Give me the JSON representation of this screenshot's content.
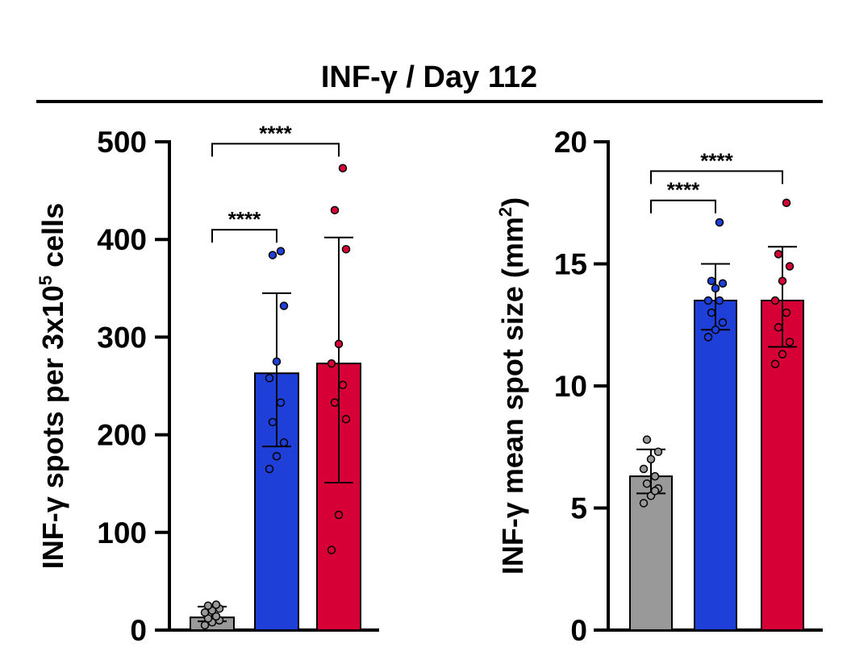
{
  "figure_title": "INF-γ / Day 112",
  "chart_data": [
    {
      "type": "bar",
      "ylabel_main": "INF-γ spots per 3x10",
      "ylabel_sup": "5",
      "ylabel_tail": " cells",
      "ylim": [
        0,
        500
      ],
      "yticks": [
        0,
        100,
        200,
        300,
        400,
        500
      ],
      "ytick_labels": [
        "0",
        "100",
        "200",
        "300",
        "400",
        "500"
      ],
      "groups": [
        {
          "color": "#999999",
          "mean": 13,
          "err_low": 9,
          "err_high": 24,
          "points": [
            5,
            8,
            10,
            12,
            14,
            18,
            20,
            22,
            25,
            26
          ]
        },
        {
          "color": "#1f3fd9",
          "mean": 263,
          "err_low": 188,
          "err_high": 345,
          "points": [
            165,
            178,
            192,
            213,
            233,
            258,
            275,
            332,
            384,
            388
          ]
        },
        {
          "color": "#d60036",
          "mean": 273,
          "err_low": 151,
          "err_high": 402,
          "points": [
            82,
            118,
            216,
            233,
            251,
            273,
            293,
            390,
            430,
            473
          ]
        }
      ],
      "significance": [
        {
          "from": 0,
          "to": 1,
          "label": "****",
          "level": 410
        },
        {
          "from": 0,
          "to": 2,
          "label": "****",
          "level": 498
        }
      ]
    },
    {
      "type": "bar",
      "ylabel_main": "INF-γ mean spot size (mm",
      "ylabel_sup": "2",
      "ylabel_tail": ")",
      "ylim": [
        0,
        20
      ],
      "yticks": [
        0,
        5,
        10,
        15,
        20
      ],
      "ytick_labels": [
        "0",
        "5",
        "10",
        "15",
        "20"
      ],
      "groups": [
        {
          "color": "#999999",
          "mean": 6.3,
          "err_low": 5.6,
          "err_high": 7.4,
          "points": [
            5.2,
            5.5,
            5.8,
            6.0,
            6.3,
            6.6,
            7.0,
            7.3,
            7.8,
            5.7
          ]
        },
        {
          "color": "#1f3fd9",
          "mean": 13.5,
          "err_low": 12.3,
          "err_high": 15.0,
          "points": [
            12.0,
            12.3,
            12.6,
            13.0,
            13.5,
            13.5,
            14.0,
            14.2,
            14.3,
            16.7
          ]
        },
        {
          "color": "#d60036",
          "mean": 13.5,
          "err_low": 11.6,
          "err_high": 15.7,
          "points": [
            10.9,
            11.3,
            11.8,
            12.4,
            13.0,
            13.5,
            14.3,
            14.9,
            15.4,
            17.5
          ]
        }
      ],
      "significance": [
        {
          "from": 0,
          "to": 1,
          "label": "****",
          "level": 17.6
        },
        {
          "from": 0,
          "to": 2,
          "label": "****",
          "level": 18.8
        }
      ]
    }
  ]
}
